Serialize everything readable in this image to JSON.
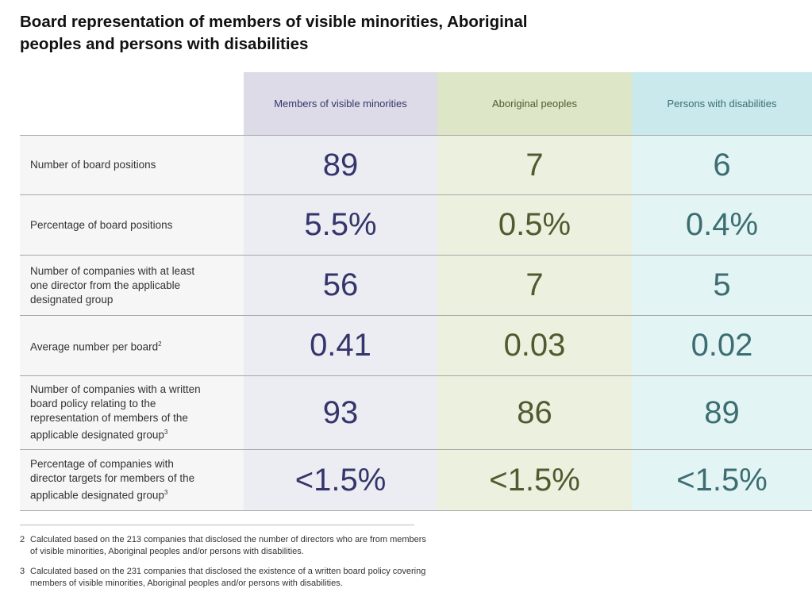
{
  "title": "Board representation of members of visible minorities, Aboriginal peoples and persons with disabilities",
  "columns": [
    "Members of visible minorities",
    "Aboriginal peoples",
    "Persons with disabilities"
  ],
  "rows": [
    {
      "label": "Number of board positions",
      "sup": "",
      "values": [
        "89",
        "7",
        "6"
      ]
    },
    {
      "label": "Percentage of board positions",
      "sup": "",
      "values": [
        "5.5%",
        "0.5%",
        "0.4%"
      ]
    },
    {
      "label": "Number of companies with at least one director from the applicable designated group",
      "sup": "",
      "values": [
        "56",
        "7",
        "5"
      ]
    },
    {
      "label": "Average number per board",
      "sup": "2",
      "values": [
        "0.41",
        "0.03",
        "0.02"
      ]
    },
    {
      "label": "Number of companies with a written board policy relating to the representation of members of the applicable designated group",
      "sup": "3",
      "values": [
        "93",
        "86",
        "89"
      ]
    },
    {
      "label": "Percentage of companies with director targets for members of the applicable designated group",
      "sup": "3",
      "values": [
        "<1.5%",
        "<1.5%",
        "<1.5%"
      ]
    }
  ],
  "footnotes": [
    {
      "num": "2",
      "text": "Calculated based on the 213 companies that disclosed the number of directors who are from members of visible minorities, Aboriginal peoples and/or persons with disabilities."
    },
    {
      "num": "3",
      "text": "Calculated based on the 231 companies that disclosed the existence of a written board policy covering members of visible minorities, Aboriginal peoples and/or persons with disabilities."
    }
  ]
}
